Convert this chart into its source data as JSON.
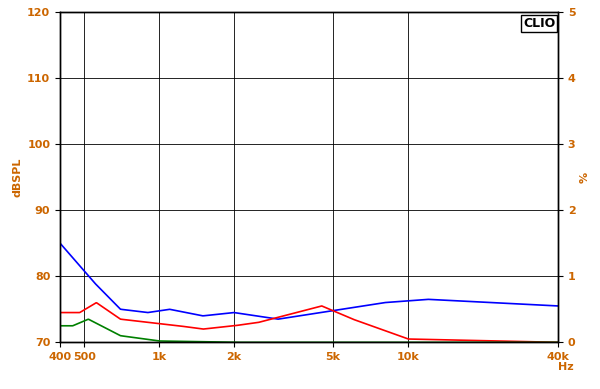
{
  "ylabel_left": "dBSPL",
  "ylabel_right": "%",
  "xlim": [
    400,
    40000
  ],
  "ylim_left": [
    70,
    120
  ],
  "ylim_right": [
    0,
    5
  ],
  "yticks_left": [
    70,
    80,
    90,
    100,
    110,
    120
  ],
  "ytick_labels_left": [
    "70",
    "80",
    "90",
    "100",
    "110",
    "120"
  ],
  "yticks_right": [
    0,
    1,
    2,
    3,
    4,
    5
  ],
  "ytick_labels_right": [
    "0",
    "1",
    "2",
    "3",
    "4",
    "5"
  ],
  "xtick_positions": [
    400,
    500,
    1000,
    2000,
    5000,
    10000,
    40000
  ],
  "xtick_labels": [
    "400",
    "500",
    "1k",
    "2k",
    "5k",
    "10k",
    "40k"
  ],
  "background_color": "#ffffff",
  "plot_background": "#ffffff",
  "grid_color": "#000000",
  "line_color_blue": "#0000ff",
  "line_color_red": "#ff0000",
  "line_color_green": "#008000",
  "clio_text": "CLIO",
  "clio_color": "#000000",
  "text_color": "#cc6600",
  "border_color": "#000000"
}
